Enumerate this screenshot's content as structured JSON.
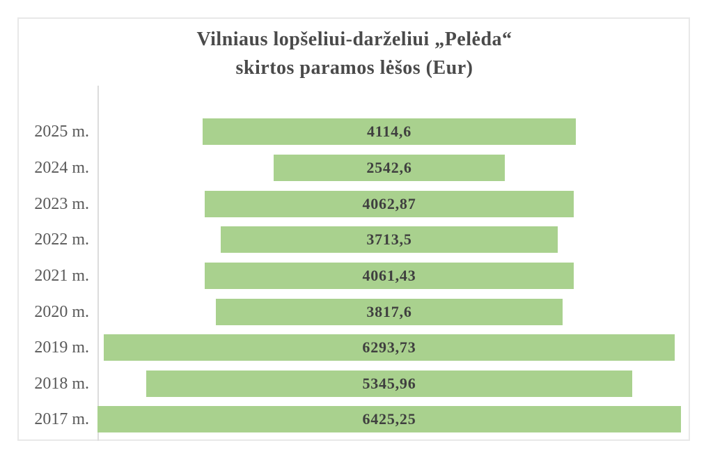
{
  "chart": {
    "title_line1": "Vilniaus lopšeliui-darželiui „Pelėda“",
    "title_line2": "skirtos paramos lėšos (Eur)"
  },
  "chart_data": {
    "type": "bar",
    "variant": "horizontal-centered-funnel",
    "title": "Vilniaus lopšeliui-darželiui „Pelėda“ skirtos paramos lėšos (Eur)",
    "xlabel": "",
    "ylabel": "",
    "grid": false,
    "legend": false,
    "value_axis_range": [
      0,
      6425.25
    ],
    "categories": [
      "2025 m.",
      "2024 m.",
      "2023 m.",
      "2022 m.",
      "2021 m.",
      "2020 m.",
      "2019 m.",
      "2018 m.",
      "2017 m."
    ],
    "values": [
      4114.6,
      2542.6,
      4062.87,
      3713.5,
      4061.43,
      3817.6,
      6293.73,
      5345.96,
      6425.25
    ],
    "value_labels": [
      "4114,6",
      "2542,6",
      "4062,87",
      "3713,5",
      "4061,43",
      "3817,6",
      "6293,73",
      "5345,96",
      "6425,25"
    ],
    "colors": {
      "bar_fill": "#a9d18e",
      "value_label": "#3f3f3f",
      "category_label": "#595959",
      "title": "#4a4a4a",
      "axis_line": "#dcdcdc",
      "frame_border": "#e8e8e8",
      "background": "#ffffff"
    }
  }
}
